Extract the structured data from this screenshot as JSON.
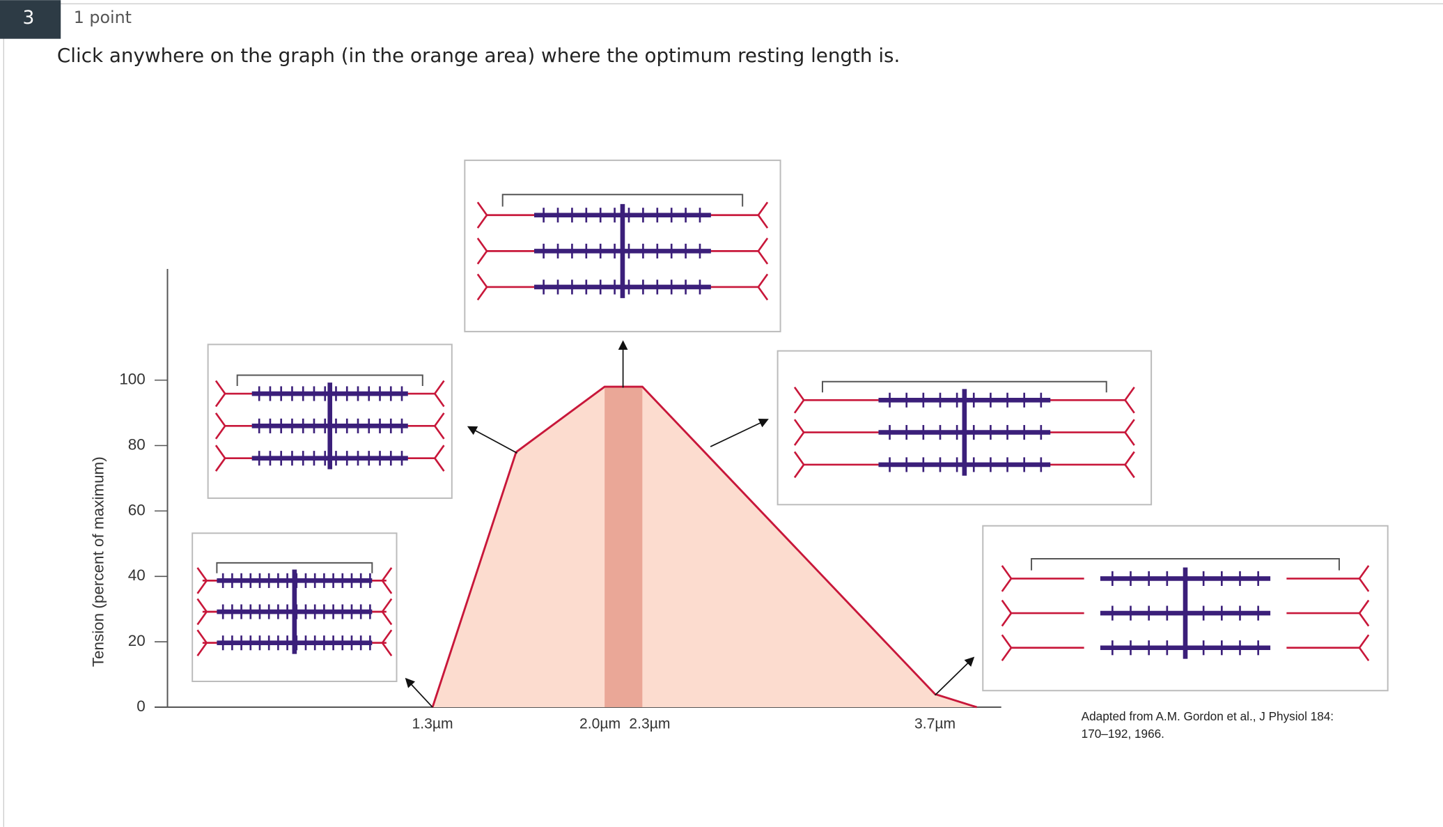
{
  "question": {
    "number": "3",
    "points": "1 point",
    "text": "Click anywhere on the graph (in the orange area) where the optimum resting length is."
  },
  "chart_data": {
    "type": "area",
    "ylabel": "Tension (percent of maximum)",
    "ylim": [
      0,
      134
    ],
    "yticks": [
      0,
      20,
      40,
      60,
      80,
      100
    ],
    "xticks": [
      {
        "value": 1.3,
        "label": "1.3µm"
      },
      {
        "value": 2.0,
        "label": "2.0µm"
      },
      {
        "value": 2.3,
        "label": "2.3µm"
      },
      {
        "value": 3.7,
        "label": "3.7µm"
      }
    ],
    "x": [
      1.3,
      1.64,
      2.0,
      2.3,
      3.7,
      3.9
    ],
    "y": [
      0,
      78,
      98,
      98,
      4,
      0
    ],
    "optimum_band": [
      2.0,
      2.3
    ],
    "color": "#c8173a",
    "fill": "#fcdccf",
    "band_color": "#eaa797",
    "source": [
      "Adapted from A.M. Gordon et al., J Physiol 184:",
      "170–192, 1966."
    ]
  }
}
